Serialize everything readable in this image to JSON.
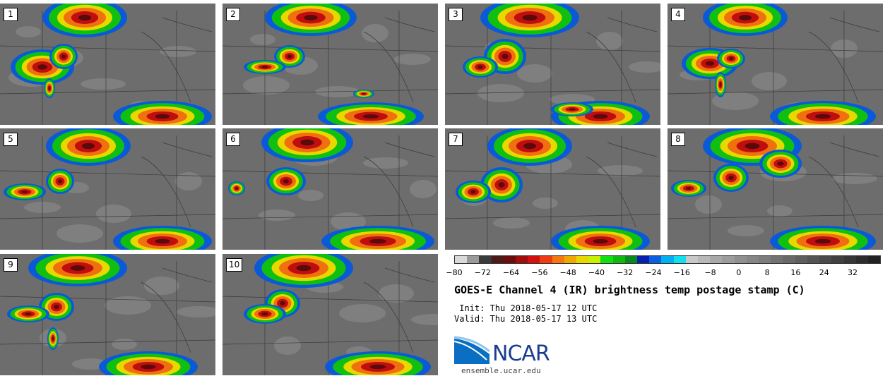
{
  "panels": [
    "1",
    "2",
    "3",
    "4",
    "5",
    "6",
    "7",
    "8",
    "9",
    "10"
  ],
  "colorbar": {
    "ticks": [
      "−80",
      "−72",
      "−64",
      "−56",
      "−48",
      "−40",
      "−32",
      "−24",
      "−16",
      "−8",
      "0",
      "8",
      "16",
      "24",
      "32"
    ],
    "colors": [
      "#d9d9d9",
      "#9a9a9a",
      "#3a3a3a",
      "#4d1a1a",
      "#6a0d0d",
      "#a00e0e",
      "#d41010",
      "#f03a10",
      "#f7770f",
      "#f0a800",
      "#e8d800",
      "#c8f000",
      "#10e010",
      "#10b810",
      "#088a20",
      "#0820b0",
      "#0a60e0",
      "#00b0f0",
      "#10e0f0",
      "#c8c8c8",
      "#b8b8b8",
      "#a8a8a8",
      "#9c9c9c",
      "#909090",
      "#868686",
      "#7c7c7c",
      "#727272",
      "#686868",
      "#5e5e5e",
      "#545454",
      "#4a4a4a",
      "#404040",
      "#363636",
      "#2c2c2c",
      "#222222"
    ]
  },
  "title": "GOES-E Channel 4 (IR) brightness temp postage stamp (C)",
  "init": " Init: Thu 2018-05-17 12 UTC",
  "valid": "Valid: Thu 2018-05-17 13 UTC",
  "logo_text": "NCAR",
  "site": "ensemble.ucar.edu"
}
